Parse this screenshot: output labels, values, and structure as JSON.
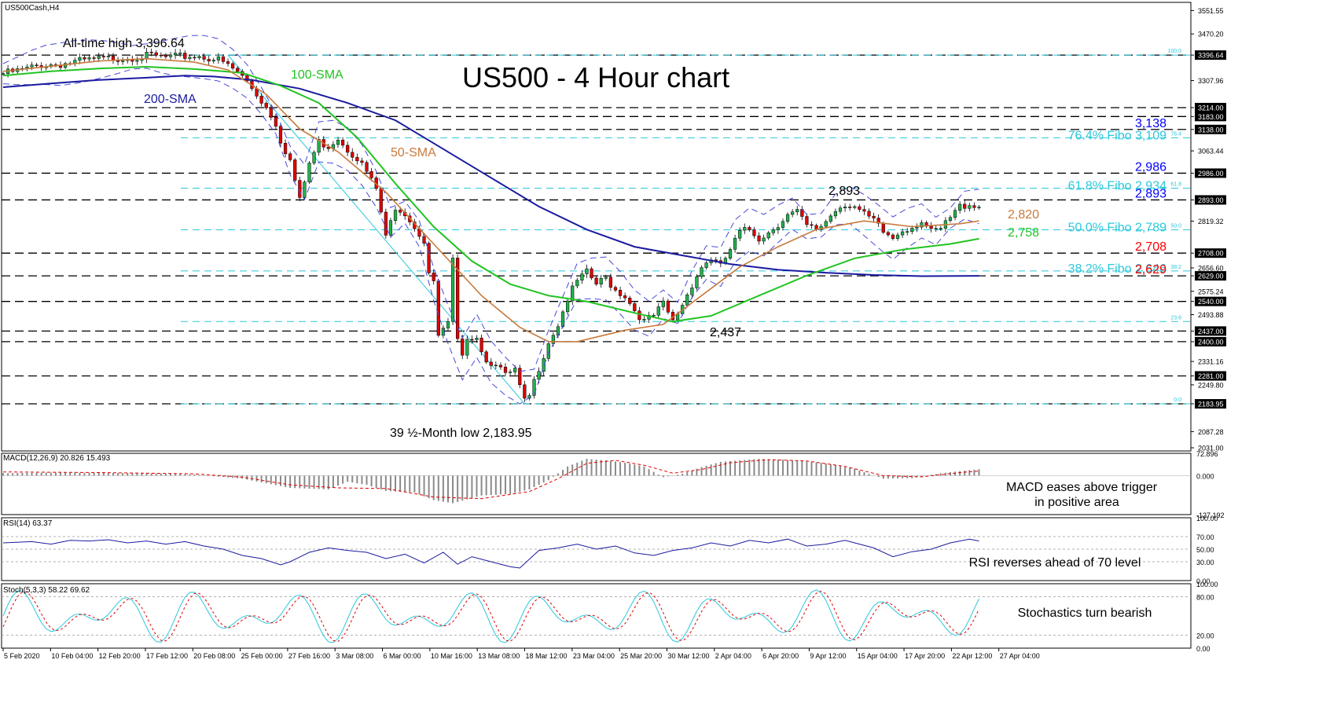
{
  "symbol": "US500Cash,H4",
  "chart_data": [
    {
      "type": "line",
      "panel": "price",
      "title": "US500 - 4 Hour chart",
      "x_labels": [
        "5 Feb 2020",
        "10 Feb 04:00",
        "12 Feb 20:00",
        "17 Feb 12:00",
        "20 Feb 08:00",
        "25 Feb 00:00",
        "27 Feb 16:00",
        "3 Mar 08:00",
        "6 Mar 00:00",
        "10 Mar 16:00",
        "13 Mar 08:00",
        "18 Mar 12:00",
        "23 Mar 04:00",
        "25 Mar 20:00",
        "30 Mar 12:00",
        "2 Apr 04:00",
        "6 Apr 20:00",
        "9 Apr 12:00",
        "15 Apr 04:00",
        "17 Apr 20:00",
        "22 Apr 12:00",
        "27 Apr 04:00"
      ],
      "y_ticks": [
        "3551.55",
        "3470.20",
        "3396.64",
        "3307.96",
        "3214.00",
        "3183.00",
        "3138.00",
        "3063.44",
        "2986.00",
        "2893.00",
        "2819.32",
        "2708.00",
        "2656.60",
        "2629.00",
        "2575.24",
        "2540.00",
        "2493.88",
        "2437.00",
        "2400.00",
        "2331.16",
        "2281.00",
        "2249.80",
        "2183.95",
        "2087.28",
        "2031.00"
      ],
      "y_range": [
        2020,
        3580
      ],
      "levels": [
        3396.64,
        3214,
        3183,
        3138,
        2986,
        2893,
        2708,
        2629,
        2540,
        2437,
        2400,
        2281,
        2183.95
      ],
      "fibo_levels": [
        {
          "tag": "100.0",
          "value": 3396.64
        },
        {
          "tag": "76.4",
          "value": 3109
        },
        {
          "tag": "61.8",
          "value": 2934
        },
        {
          "tag": "50.0",
          "value": 2789
        },
        {
          "tag": "38.2",
          "value": 2646
        },
        {
          "tag": "23.6",
          "value": 2470
        },
        {
          "tag": "0.0",
          "value": 2183.95
        }
      ],
      "close_series": [
        [
          0,
          3332
        ],
        [
          4,
          3345
        ],
        [
          8,
          3362
        ],
        [
          12,
          3365
        ],
        [
          16,
          3375
        ],
        [
          20,
          3382
        ],
        [
          24,
          3386
        ],
        [
          28,
          3390
        ],
        [
          31,
          3395
        ],
        [
          34,
          3388
        ],
        [
          38,
          3392
        ],
        [
          41,
          3393
        ],
        [
          45,
          3380
        ],
        [
          47,
          3360
        ],
        [
          49,
          3338
        ],
        [
          51,
          3305
        ],
        [
          53,
          3260
        ],
        [
          55,
          3215
        ],
        [
          57,
          3160
        ],
        [
          58,
          3100
        ],
        [
          60,
          3030
        ],
        [
          61,
          2960
        ],
        [
          62,
          2890
        ],
        [
          64,
          3020
        ],
        [
          66,
          3095
        ],
        [
          68,
          3080
        ],
        [
          70,
          3110
        ],
        [
          72,
          3070
        ],
        [
          74,
          3040
        ],
        [
          76,
          2990
        ],
        [
          78,
          2930
        ],
        [
          79,
          2850
        ],
        [
          80,
          2760
        ],
        [
          82,
          2870
        ],
        [
          84,
          2850
        ],
        [
          86,
          2800
        ],
        [
          88,
          2750
        ],
        [
          89,
          2640
        ],
        [
          90,
          2600
        ],
        [
          91,
          2420
        ],
        [
          93,
          2460
        ],
        [
          94,
          2680
        ],
        [
          95,
          2400
        ],
        [
          96,
          2340
        ],
        [
          97,
          2420
        ],
        [
          99,
          2420
        ],
        [
          101,
          2330
        ],
        [
          103,
          2330
        ],
        [
          105,
          2280
        ],
        [
          106,
          2290
        ],
        [
          107,
          2300
        ],
        [
          108,
          2240
        ],
        [
          109,
          2190
        ],
        [
          110,
          2210
        ],
        [
          112,
          2310
        ],
        [
          114,
          2400
        ],
        [
          116,
          2460
        ],
        [
          118,
          2550
        ],
        [
          120,
          2610
        ],
        [
          122,
          2640
        ],
        [
          124,
          2600
        ],
        [
          126,
          2620
        ],
        [
          128,
          2580
        ],
        [
          130,
          2560
        ],
        [
          132,
          2510
        ],
        [
          134,
          2470
        ],
        [
          136,
          2490
        ],
        [
          138,
          2530
        ],
        [
          140,
          2470
        ],
        [
          142,
          2530
        ],
        [
          144,
          2600
        ],
        [
          146,
          2660
        ],
        [
          148,
          2690
        ],
        [
          150,
          2660
        ],
        [
          152,
          2720
        ],
        [
          154,
          2780
        ],
        [
          156,
          2790
        ],
        [
          158,
          2760
        ],
        [
          160,
          2780
        ],
        [
          162,
          2810
        ],
        [
          164,
          2840
        ],
        [
          166,
          2850
        ],
        [
          168,
          2800
        ],
        [
          170,
          2790
        ],
        [
          172,
          2820
        ],
        [
          174,
          2860
        ],
        [
          176,
          2880
        ],
        [
          178,
          2870
        ],
        [
          180,
          2840
        ],
        [
          182,
          2820
        ],
        [
          184,
          2780
        ],
        [
          186,
          2760
        ],
        [
          188,
          2790
        ],
        [
          190,
          2800
        ],
        [
          192,
          2820
        ],
        [
          194,
          2780
        ],
        [
          196,
          2790
        ],
        [
          198,
          2830
        ],
        [
          200,
          2870
        ],
        [
          202,
          2880
        ],
        [
          204,
          2870
        ]
      ],
      "sma_50": [
        [
          0,
          3340
        ],
        [
          10,
          3358
        ],
        [
          20,
          3376
        ],
        [
          30,
          3384
        ],
        [
          40,
          3372
        ],
        [
          47,
          3345
        ],
        [
          55,
          3260
        ],
        [
          62,
          3140
        ],
        [
          70,
          3060
        ],
        [
          80,
          2920
        ],
        [
          90,
          2740
        ],
        [
          100,
          2560
        ],
        [
          108,
          2450
        ],
        [
          114,
          2400
        ],
        [
          120,
          2400
        ],
        [
          130,
          2440
        ],
        [
          138,
          2460
        ],
        [
          146,
          2560
        ],
        [
          154,
          2660
        ],
        [
          162,
          2730
        ],
        [
          170,
          2790
        ],
        [
          180,
          2820
        ],
        [
          190,
          2800
        ],
        [
          200,
          2810
        ],
        [
          204,
          2820
        ]
      ],
      "sma_100": [
        [
          0,
          3325
        ],
        [
          10,
          3340
        ],
        [
          20,
          3350
        ],
        [
          30,
          3356
        ],
        [
          40,
          3348
        ],
        [
          50,
          3335
        ],
        [
          58,
          3290
        ],
        [
          66,
          3230
        ],
        [
          74,
          3110
        ],
        [
          82,
          2950
        ],
        [
          90,
          2800
        ],
        [
          98,
          2680
        ],
        [
          106,
          2600
        ],
        [
          114,
          2560
        ],
        [
          122,
          2540
        ],
        [
          132,
          2500
        ],
        [
          140,
          2470
        ],
        [
          148,
          2490
        ],
        [
          158,
          2560
        ],
        [
          168,
          2630
        ],
        [
          178,
          2690
        ],
        [
          188,
          2720
        ],
        [
          198,
          2740
        ],
        [
          204,
          2758
        ]
      ],
      "sma_200": [
        [
          0,
          3285
        ],
        [
          10,
          3298
        ],
        [
          20,
          3310
        ],
        [
          30,
          3318
        ],
        [
          38,
          3325
        ],
        [
          44,
          3322
        ],
        [
          52,
          3310
        ],
        [
          62,
          3280
        ],
        [
          72,
          3230
        ],
        [
          82,
          3170
        ],
        [
          92,
          3070
        ],
        [
          102,
          2970
        ],
        [
          112,
          2870
        ],
        [
          122,
          2790
        ],
        [
          132,
          2730
        ],
        [
          142,
          2700
        ],
        [
          152,
          2670
        ],
        [
          162,
          2650
        ],
        [
          172,
          2640
        ],
        [
          182,
          2632
        ],
        [
          192,
          2628
        ],
        [
          204,
          2629
        ]
      ],
      "annotations": {
        "ath": "All-time high 3,396.64",
        "low": "39 ½-Month low 2,183.95",
        "sma100": "100-SMA",
        "sma200": "200-SMA",
        "sma50": "50-SMA",
        "peak": "2,893",
        "trough": "2,437"
      },
      "right_labels": [
        {
          "text": "3,138",
          "value": 3138,
          "color": "#0000ff"
        },
        {
          "text": "76.4% Fibo 3,109",
          "value": 3109,
          "color": "#2bc8dc"
        },
        {
          "text": "2,986",
          "value": 2986,
          "color": "#0000ff"
        },
        {
          "text": "61.8% Fibo 2,934",
          "value": 2934,
          "color": "#2bc8dc"
        },
        {
          "text": "2,893",
          "value": 2893,
          "color": "#0000ff"
        },
        {
          "text": "2,820",
          "value": 2820,
          "color": "#c87a3c"
        },
        {
          "text": "50.0% Fibo 2,789",
          "value": 2789,
          "color": "#2bc8dc"
        },
        {
          "text": "2,758",
          "value": 2758,
          "color": "#22c322"
        },
        {
          "text": "2,708",
          "value": 2708,
          "color": "#ff0000"
        },
        {
          "text": "38.2% Fibo 2,646",
          "value": 2646,
          "color": "#2bc8dc"
        },
        {
          "text": "2,629",
          "value": 2629,
          "color": "#ff0000"
        }
      ]
    },
    {
      "type": "bar",
      "panel": "macd",
      "header": "MACD(12,26,9) 20.826 15.493",
      "y_ticks": [
        "72.896",
        "0.000",
        "-127.192"
      ],
      "y_range": [
        -127.192,
        72.896
      ],
      "histogram": [
        [
          0,
          8
        ],
        [
          10,
          10
        ],
        [
          20,
          9
        ],
        [
          30,
          8
        ],
        [
          40,
          4
        ],
        [
          50,
          -10
        ],
        [
          60,
          -40
        ],
        [
          68,
          -45
        ],
        [
          72,
          -20
        ],
        [
          76,
          -30
        ],
        [
          80,
          -50
        ],
        [
          86,
          -55
        ],
        [
          90,
          -80
        ],
        [
          94,
          -90
        ],
        [
          100,
          -65
        ],
        [
          106,
          -60
        ],
        [
          110,
          -45
        ],
        [
          114,
          -15
        ],
        [
          118,
          30
        ],
        [
          122,
          55
        ],
        [
          126,
          50
        ],
        [
          130,
          42
        ],
        [
          134,
          30
        ],
        [
          138,
          -5
        ],
        [
          142,
          6
        ],
        [
          146,
          28
        ],
        [
          150,
          45
        ],
        [
          158,
          55
        ],
        [
          166,
          50
        ],
        [
          172,
          40
        ],
        [
          178,
          22
        ],
        [
          184,
          -10
        ],
        [
          190,
          -8
        ],
        [
          196,
          8
        ],
        [
          202,
          18
        ],
        [
          204,
          21
        ]
      ],
      "signal": [
        [
          0,
          12
        ],
        [
          20,
          10
        ],
        [
          40,
          6
        ],
        [
          50,
          -5
        ],
        [
          60,
          -30
        ],
        [
          70,
          -40
        ],
        [
          80,
          -42
        ],
        [
          90,
          -70
        ],
        [
          100,
          -75
        ],
        [
          110,
          -52
        ],
        [
          116,
          -10
        ],
        [
          122,
          40
        ],
        [
          128,
          50
        ],
        [
          134,
          34
        ],
        [
          140,
          8
        ],
        [
          146,
          20
        ],
        [
          152,
          42
        ],
        [
          160,
          52
        ],
        [
          168,
          48
        ],
        [
          176,
          30
        ],
        [
          184,
          0
        ],
        [
          192,
          -4
        ],
        [
          200,
          10
        ],
        [
          204,
          15
        ]
      ],
      "note": [
        "MACD eases above trigger",
        "in positive area"
      ]
    },
    {
      "type": "line",
      "panel": "rsi",
      "header": "RSI(14) 63.37",
      "y_ticks": [
        "100.00",
        "70.00",
        "50.00",
        "30.00",
        "0.00"
      ],
      "y_range": [
        0,
        100
      ],
      "values": [
        [
          0,
          60
        ],
        [
          6,
          62
        ],
        [
          10,
          58
        ],
        [
          14,
          64
        ],
        [
          18,
          63
        ],
        [
          22,
          65
        ],
        [
          26,
          60
        ],
        [
          30,
          63
        ],
        [
          34,
          58
        ],
        [
          38,
          62
        ],
        [
          42,
          55
        ],
        [
          46,
          50
        ],
        [
          50,
          40
        ],
        [
          54,
          35
        ],
        [
          58,
          25
        ],
        [
          60,
          30
        ],
        [
          64,
          45
        ],
        [
          68,
          52
        ],
        [
          72,
          48
        ],
        [
          76,
          45
        ],
        [
          80,
          35
        ],
        [
          84,
          42
        ],
        [
          88,
          28
        ],
        [
          92,
          45
        ],
        [
          95,
          26
        ],
        [
          98,
          38
        ],
        [
          102,
          30
        ],
        [
          106,
          22
        ],
        [
          108,
          20
        ],
        [
          112,
          48
        ],
        [
          116,
          52
        ],
        [
          120,
          58
        ],
        [
          124,
          50
        ],
        [
          128,
          55
        ],
        [
          132,
          44
        ],
        [
          136,
          40
        ],
        [
          140,
          48
        ],
        [
          144,
          52
        ],
        [
          148,
          60
        ],
        [
          152,
          55
        ],
        [
          156,
          64
        ],
        [
          160,
          60
        ],
        [
          164,
          66
        ],
        [
          168,
          55
        ],
        [
          172,
          58
        ],
        [
          176,
          64
        ],
        [
          178,
          60
        ],
        [
          182,
          52
        ],
        [
          186,
          38
        ],
        [
          190,
          46
        ],
        [
          194,
          50
        ],
        [
          198,
          60
        ],
        [
          202,
          66
        ],
        [
          204,
          63
        ]
      ],
      "note": "RSI reverses ahead of 70 level"
    },
    {
      "type": "line",
      "panel": "stochastic",
      "header": "Stoch(5,3,3) 58.22 69.62",
      "y_ticks": [
        "100.00",
        "80.00",
        "20.00",
        "0.00"
      ],
      "y_range": [
        0,
        100
      ],
      "note": "Stochastics turn bearish"
    }
  ],
  "colors": {
    "bull": "#22b14c",
    "bear": "#e00000",
    "sma50": "#c87a3c",
    "sma100": "#22c322",
    "sma200": "#1a1aa0",
    "fibo": "#2bc8dc",
    "level": "#000000",
    "bands": "#4a4ad8",
    "macd_signal": "#e00000",
    "rsi": "#1a1aa0"
  }
}
